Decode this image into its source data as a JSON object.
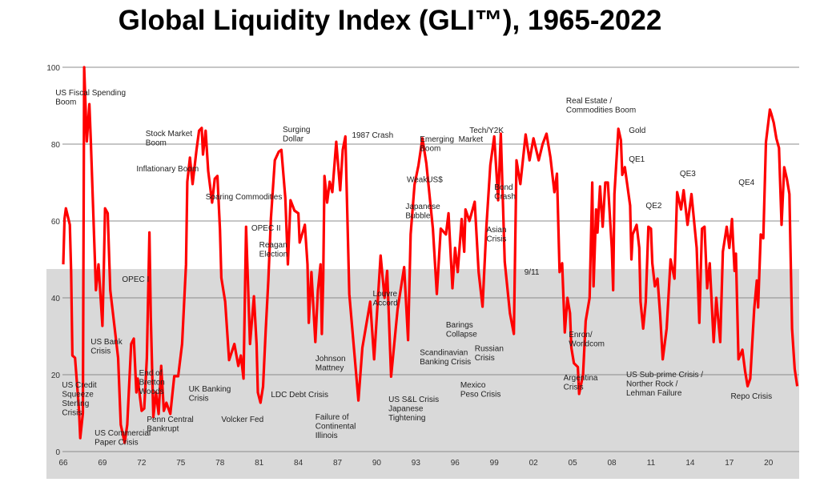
{
  "chart_data": {
    "type": "line",
    "title": "Global Liquidity Index (GLI™), 1965-2022",
    "xlabel": "",
    "ylabel": "",
    "xlim": [
      1966,
      2022.4
    ],
    "ylim": [
      0,
      100
    ],
    "grid": true,
    "shaded_band": {
      "from": 0,
      "to": 47.5,
      "color": "#d9d9d9"
    },
    "y_ticks": [
      0,
      20,
      40,
      60,
      80,
      100
    ],
    "x_ticks": [
      {
        "year": 1966,
        "label": "66"
      },
      {
        "year": 1969,
        "label": "69"
      },
      {
        "year": 1972,
        "label": "72"
      },
      {
        "year": 1975,
        "label": "75"
      },
      {
        "year": 1978,
        "label": "78"
      },
      {
        "year": 1981,
        "label": "81"
      },
      {
        "year": 1984,
        "label": "84"
      },
      {
        "year": 1987,
        "label": "87"
      },
      {
        "year": 1990,
        "label": "90"
      },
      {
        "year": 1993,
        "label": "93"
      },
      {
        "year": 1996,
        "label": "96"
      },
      {
        "year": 1999,
        "label": "99"
      },
      {
        "year": 2002,
        "label": "02"
      },
      {
        "year": 2005,
        "label": "05"
      },
      {
        "year": 2008,
        "label": "08"
      },
      {
        "year": 2011,
        "label": "11"
      },
      {
        "year": 2014,
        "label": "14"
      },
      {
        "year": 2017,
        "label": "17"
      },
      {
        "year": 2020,
        "label": "20"
      }
    ],
    "series": [
      {
        "name": "GLI",
        "color": "#ff0000",
        "x": [
          1966.0,
          1966.1,
          1966.2,
          1966.5,
          1966.6,
          1966.7,
          1966.9,
          1967.2,
          1967.3,
          1967.5,
          1967.6,
          1967.8,
          1968.0,
          1968.1,
          1968.4,
          1968.5,
          1968.7,
          1969.0,
          1969.1,
          1969.2,
          1969.4,
          1969.6,
          1970.2,
          1970.4,
          1970.7,
          1970.9,
          1971.2,
          1971.4,
          1971.6,
          1971.7,
          1972.0,
          1972.2,
          1972.4,
          1972.6,
          1972.7,
          1972.9,
          1973.1,
          1973.3,
          1973.5,
          1973.7,
          1973.9,
          1974.2,
          1974.5,
          1974.8,
          1975.1,
          1975.3,
          1975.4,
          1975.5,
          1975.7,
          1975.9,
          1976.2,
          1976.4,
          1976.6,
          1976.7,
          1976.9,
          1977.1,
          1977.4,
          1977.6,
          1977.8,
          1978.0,
          1978.1,
          1978.4,
          1978.7,
          1979.1,
          1979.4,
          1979.6,
          1979.8,
          1980.0,
          1980.2,
          1980.3,
          1980.6,
          1980.8,
          1980.9,
          1981.1,
          1981.3,
          1981.5,
          1981.7,
          1981.9,
          1982.2,
          1982.5,
          1982.7,
          1983.0,
          1983.2,
          1983.4,
          1983.7,
          1984.0,
          1984.1,
          1984.5,
          1984.7,
          1984.8,
          1985.0,
          1985.3,
          1985.5,
          1985.7,
          1985.8,
          1985.9,
          1986.0,
          1986.2,
          1986.4,
          1986.6,
          1986.9,
          1987.2,
          1987.4,
          1987.6,
          1987.9,
          1988.6,
          1988.9,
          1989.5,
          1989.8,
          1990.3,
          1990.6,
          1990.8,
          1991.1,
          1991.6,
          1992.1,
          1992.4,
          1992.6,
          1992.9,
          1993.2,
          1993.5,
          1993.8,
          1994.3,
          1994.6,
          1994.9,
          1995.3,
          1995.5,
          1995.8,
          1996.0,
          1996.2,
          1996.5,
          1996.7,
          1996.8,
          1997.1,
          1997.5,
          1997.8,
          1998.1,
          1998.4,
          1998.7,
          1999.0,
          1999.3,
          1999.5,
          1999.8,
          2000.2,
          2000.5,
          2000.7,
          2001.0,
          2001.4,
          2001.7,
          2002.0,
          2002.4,
          2002.7,
          2003.0,
          2003.3,
          2003.6,
          2003.8,
          2004.0,
          2004.2,
          2004.4,
          2004.6,
          2004.8,
          2004.9,
          2005.1,
          2005.4,
          2005.5,
          2005.8,
          2006.0,
          2006.3,
          2006.5,
          2006.6,
          2006.8,
          2006.9,
          2007.1,
          2007.3,
          2007.5,
          2007.7,
          2008.0,
          2008.1,
          2008.2,
          2008.5,
          2008.7,
          2008.8,
          2009.0,
          2009.2,
          2009.4,
          2009.5,
          2009.6,
          2009.9,
          2010.1,
          2010.2,
          2010.4,
          2010.6,
          2010.8,
          2011.0,
          2011.1,
          2011.3,
          2011.5,
          2011.7,
          2011.9,
          2012.2,
          2012.4,
          2012.5,
          2012.8,
          2013.0,
          2013.3,
          2013.5,
          2013.8,
          2014.1,
          2014.5,
          2014.7,
          2014.9,
          2015.1,
          2015.3,
          2015.5,
          2015.8,
          2016.0,
          2016.3,
          2016.5,
          2016.8,
          2017.0,
          2017.2,
          2017.4,
          2017.5,
          2017.7,
          2018.0,
          2018.2,
          2018.4,
          2018.6,
          2018.9,
          2019.1,
          2019.2,
          2019.4,
          2019.6,
          2019.8,
          2020.1,
          2020.2,
          2020.4,
          2020.6,
          2020.8,
          2021.0,
          2021.2,
          2021.4,
          2021.6,
          2021.8,
          2022.0,
          2022.2
        ],
        "values": [
          48.7,
          60.6,
          63.3,
          59,
          47,
          25,
          24.4,
          11,
          3.5,
          10,
          100,
          80.7,
          90.4,
          81.5,
          52.3,
          42,
          48.7,
          32.7,
          47.3,
          63.3,
          62,
          42,
          24.4,
          7,
          2.3,
          7,
          28,
          29.4,
          15.4,
          19,
          10.6,
          11.2,
          24.4,
          57,
          35,
          9,
          15.4,
          9.8,
          22.3,
          10.6,
          12.7,
          9.8,
          19.6,
          19.6,
          28,
          42,
          48.7,
          70.2,
          76.5,
          69.6,
          78.5,
          83.5,
          84.2,
          77.3,
          83.5,
          73,
          64.8,
          71,
          71.7,
          57.7,
          45.2,
          39,
          23.8,
          28,
          22.3,
          25,
          19,
          58.5,
          38,
          28,
          40.4,
          28,
          15.4,
          12.7,
          16.9,
          31.5,
          44.6,
          60.6,
          75.8,
          78,
          78.5,
          66,
          48.7,
          65.4,
          62.7,
          62,
          54.4,
          59,
          48.7,
          33.5,
          46.7,
          28.5,
          42,
          48.7,
          30.6,
          44.6,
          71.7,
          64.8,
          70.2,
          67.5,
          80.6,
          68,
          78.5,
          82,
          41,
          13.3,
          27,
          39,
          24,
          51,
          40,
          47,
          19.5,
          37,
          48,
          29,
          56.5,
          69.5,
          74.5,
          81.5,
          75,
          58,
          41,
          58,
          56.5,
          62,
          42.5,
          53,
          46.7,
          60.5,
          52,
          63,
          60,
          65,
          46.7,
          37.7,
          58.5,
          74.5,
          82,
          65.4,
          82.7,
          49.4,
          36,
          30.6,
          75.8,
          69.6,
          82.5,
          75.8,
          81.5,
          75.8,
          80,
          82.7,
          76.5,
          67.5,
          72.3,
          46.7,
          49,
          31,
          40,
          36,
          27,
          23,
          22,
          15,
          20,
          34,
          40,
          70,
          43,
          63,
          57,
          69,
          58.5,
          70,
          70,
          53,
          42,
          67,
          84,
          81,
          72,
          74,
          69,
          64,
          50,
          56.5,
          59,
          53,
          39,
          32,
          39,
          58.5,
          58,
          49,
          43,
          45,
          35.5,
          24,
          32,
          44,
          50,
          45,
          67.5,
          63,
          68,
          59,
          67,
          53,
          33.5,
          58,
          58.5,
          42.5,
          49,
          28.5,
          40,
          28.5,
          52,
          58.5,
          53,
          60.5,
          47,
          51.5,
          24,
          26.5,
          21,
          17,
          19,
          37,
          44.5,
          37.5,
          56.5,
          55.5,
          80.5,
          89,
          88,
          85.5,
          81.5,
          79,
          59,
          74,
          71,
          67,
          32,
          21.5,
          17
        ]
      }
    ],
    "annotations": [
      {
        "lines": [
          "US Fiscal Spending",
          "Boom"
        ],
        "x": 1965.4,
        "y": 94.6
      },
      {
        "lines": [
          "Stock Market",
          "Boom"
        ],
        "x": 1972.3,
        "y": 84
      },
      {
        "lines": [
          "Inflationary Boom"
        ],
        "x": 1971.6,
        "y": 74.8
      },
      {
        "lines": [
          "Soaring Commodities"
        ],
        "x": 1976.9,
        "y": 67.5
      },
      {
        "lines": [
          "Surging",
          "Dollar"
        ],
        "x": 1982.8,
        "y": 85
      },
      {
        "lines": [
          "OPEC II"
        ],
        "x": 1980.4,
        "y": 59.4
      },
      {
        "lines": [
          "Reagan",
          "Election"
        ],
        "x": 1981.0,
        "y": 55
      },
      {
        "lines": [
          "OPEC I"
        ],
        "x": 1970.5,
        "y": 46
      },
      {
        "lines": [
          "US Bank",
          "Crisis"
        ],
        "x": 1968.1,
        "y": 29.8
      },
      {
        "lines": [
          "US Credit",
          "Squeeze",
          "Sterling",
          "Crisis"
        ],
        "x": 1965.9,
        "y": 18.5
      },
      {
        "lines": [
          "End of",
          "Bretton",
          "Woods"
        ],
        "x": 1971.8,
        "y": 21.7
      },
      {
        "lines": [
          "US Commercial",
          "Paper Crisis"
        ],
        "x": 1968.4,
        "y": 6
      },
      {
        "lines": [
          "Penn Central",
          "Bankrupt"
        ],
        "x": 1972.4,
        "y": 9.6
      },
      {
        "lines": [
          "UK Banking",
          "Crisis"
        ],
        "x": 1975.6,
        "y": 17.5
      },
      {
        "lines": [
          "Volcker Fed"
        ],
        "x": 1978.1,
        "y": 9.6
      },
      {
        "lines": [
          "LDC Debt Crisis"
        ],
        "x": 1981.9,
        "y": 16
      },
      {
        "lines": [
          "Johnson",
          "Mattney"
        ],
        "x": 1985.3,
        "y": 25.4
      },
      {
        "lines": [
          "Failure of",
          "Continental",
          "Illinois"
        ],
        "x": 1985.3,
        "y": 10.2
      },
      {
        "lines": [
          "1987 Crash"
        ],
        "x": 1988.1,
        "y": 83.5
      },
      {
        "lines": [
          "Louvre",
          "Accord"
        ],
        "x": 1989.7,
        "y": 42.3
      },
      {
        "lines": [
          "US S&L Crisis",
          "Japanese",
          "Tightening"
        ],
        "x": 1990.9,
        "y": 14.8
      },
      {
        "lines": [
          "Emerging  Market",
          "Boom"
        ],
        "x": 1993.3,
        "y": 82.5
      },
      {
        "lines": [
          "Tech/Y2K"
        ],
        "x": 1997.1,
        "y": 84.8
      },
      {
        "lines": [
          "WeakUS$"
        ],
        "x": 1992.3,
        "y": 72
      },
      {
        "lines": [
          "Japanese",
          "Bubble"
        ],
        "x": 1992.2,
        "y": 65
      },
      {
        "lines": [
          "Bond",
          "Crash"
        ],
        "x": 1999.0,
        "y": 70
      },
      {
        "lines": [
          "Asian",
          "Crisis"
        ],
        "x": 1998.4,
        "y": 59
      },
      {
        "lines": [
          "9/11"
        ],
        "x": 2001.3,
        "y": 47.9
      },
      {
        "lines": [
          "Barings",
          "Collapse"
        ],
        "x": 1995.3,
        "y": 34.2
      },
      {
        "lines": [
          "Scandinavian",
          "Banking Crisis"
        ],
        "x": 1993.3,
        "y": 27
      },
      {
        "lines": [
          "Russian",
          "Crisis"
        ],
        "x": 1997.5,
        "y": 28
      },
      {
        "lines": [
          "Mexico",
          "Peso Crisis"
        ],
        "x": 1996.4,
        "y": 18.5
      },
      {
        "lines": [
          "Real Estate /",
          "Commodities Boom"
        ],
        "x": 2004.5,
        "y": 92.5
      },
      {
        "lines": [
          "Gold"
        ],
        "x": 2009.3,
        "y": 84.8
      },
      {
        "lines": [
          "QE1"
        ],
        "x": 2009.3,
        "y": 77.3
      },
      {
        "lines": [
          "QE2"
        ],
        "x": 2010.6,
        "y": 65.2
      },
      {
        "lines": [
          "QE3"
        ],
        "x": 2013.2,
        "y": 73.5
      },
      {
        "lines": [
          "QE4"
        ],
        "x": 2017.7,
        "y": 71.2
      },
      {
        "lines": [
          "Enron/",
          "Worldcom"
        ],
        "x": 2004.7,
        "y": 31.7
      },
      {
        "lines": [
          "Argentina",
          "Crisis"
        ],
        "x": 2004.3,
        "y": 20.4
      },
      {
        "lines": [
          "US Sub-prime Crisis /",
          "Norther Rock /",
          "Lehman Failure"
        ],
        "x": 2009.1,
        "y": 21.2
      },
      {
        "lines": [
          "Repo Crisis"
        ],
        "x": 2017.1,
        "y": 15.6
      }
    ]
  }
}
